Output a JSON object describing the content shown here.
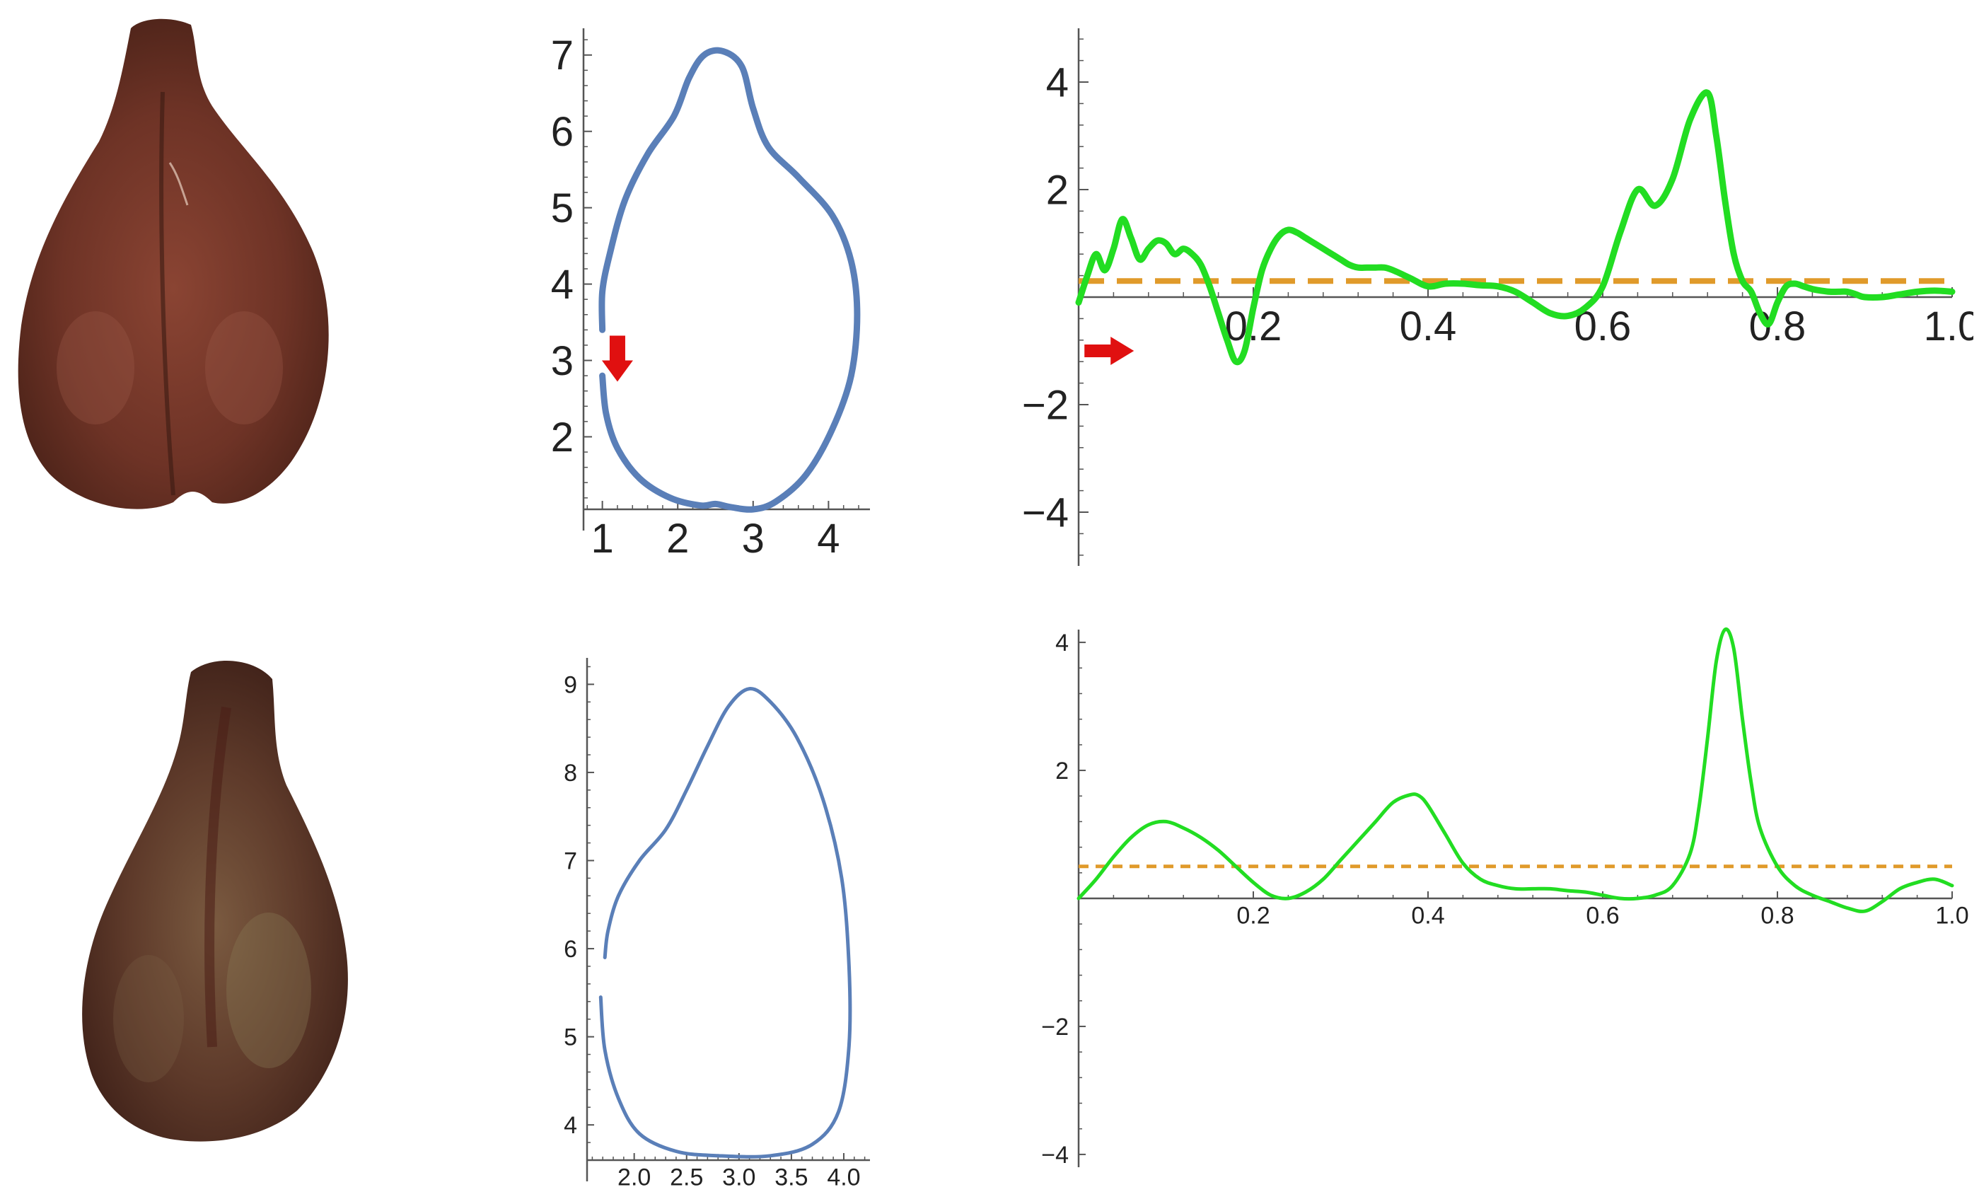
{
  "figure": {
    "colors": {
      "outline": "#5a7fb8",
      "curve": "#22dd22",
      "threshold": "#e09a2a",
      "marker": "#e01010",
      "axis": "#555555",
      "seed_dark": "#4e2419",
      "seed_mid": "#7a3a2a"
    },
    "seed_photos": [
      {
        "name": "seed-photo-top",
        "shape": "pear-shaped brown seed"
      },
      {
        "name": "seed-photo-bottom",
        "shape": "narrow pear-shaped brown seed"
      }
    ],
    "markers": [
      {
        "panel": "top-contour",
        "icon": "down-arrow-icon",
        "x": 1.2,
        "y": 3.0
      },
      {
        "panel": "top-curve",
        "icon": "right-arrow-icon",
        "x": 0.035,
        "y": -1.0
      }
    ]
  },
  "chart_data": [
    {
      "type": "line",
      "id": "top-contour",
      "xlim": [
        0.75,
        4.55
      ],
      "ylim": [
        1.05,
        7.35
      ],
      "xticks": [
        1,
        2,
        3,
        4
      ],
      "yticks": [
        2,
        3,
        4,
        5,
        6,
        7
      ],
      "series": [
        {
          "values": [
            [
              1.0,
              2.8
            ],
            [
              1.05,
              2.3
            ],
            [
              1.2,
              1.85
            ],
            [
              1.5,
              1.45
            ],
            [
              1.9,
              1.2
            ],
            [
              2.3,
              1.1
            ],
            [
              2.5,
              1.12
            ],
            [
              2.7,
              1.08
            ],
            [
              3.0,
              1.05
            ],
            [
              3.3,
              1.15
            ],
            [
              3.7,
              1.5
            ],
            [
              4.05,
              2.1
            ],
            [
              4.3,
              2.8
            ],
            [
              4.38,
              3.6
            ],
            [
              4.3,
              4.3
            ],
            [
              4.05,
              4.9
            ],
            [
              3.6,
              5.4
            ],
            [
              3.2,
              5.8
            ],
            [
              3.0,
              6.3
            ],
            [
              2.85,
              6.85
            ],
            [
              2.6,
              7.05
            ],
            [
              2.35,
              7.0
            ],
            [
              2.15,
              6.7
            ],
            [
              1.95,
              6.2
            ],
            [
              1.6,
              5.7
            ],
            [
              1.3,
              5.1
            ],
            [
              1.1,
              4.4
            ],
            [
              1.0,
              3.9
            ],
            [
              1.0,
              3.4
            ]
          ]
        }
      ]
    },
    {
      "type": "line",
      "id": "top-curve",
      "xlim": [
        0,
        1.0
      ],
      "ylim": [
        -5,
        5
      ],
      "xticks": [
        0.2,
        0.4,
        0.6,
        0.8,
        1.0
      ],
      "xtick_labels": [
        "0.2",
        "0.4",
        "0.6",
        "0.8",
        "1.0"
      ],
      "yticks": [
        -4,
        -2,
        2,
        4
      ],
      "ytick_labels": [
        "−4",
        "−2",
        "2",
        "4"
      ],
      "threshold": 0.3,
      "series": [
        {
          "x": [
            0,
            0.01,
            0.02,
            0.03,
            0.04,
            0.05,
            0.06,
            0.07,
            0.08,
            0.09,
            0.1,
            0.11,
            0.12,
            0.13,
            0.14,
            0.15,
            0.16,
            0.17,
            0.18,
            0.19,
            0.2,
            0.21,
            0.22,
            0.23,
            0.24,
            0.25,
            0.26,
            0.27,
            0.28,
            0.29,
            0.3,
            0.31,
            0.32,
            0.33,
            0.34,
            0.35,
            0.36,
            0.38,
            0.4,
            0.42,
            0.44,
            0.46,
            0.48,
            0.5,
            0.52,
            0.54,
            0.56,
            0.58,
            0.6,
            0.62,
            0.64,
            0.66,
            0.68,
            0.7,
            0.72,
            0.73,
            0.74,
            0.75,
            0.76,
            0.77,
            0.78,
            0.79,
            0.8,
            0.81,
            0.82,
            0.83,
            0.84,
            0.85,
            0.86,
            0.87,
            0.88,
            0.89,
            0.9,
            0.92,
            0.94,
            0.96,
            0.98,
            1.0
          ],
          "y": [
            -0.1,
            0.4,
            0.8,
            0.5,
            0.9,
            1.45,
            1.1,
            0.7,
            0.9,
            1.05,
            1.0,
            0.8,
            0.9,
            0.8,
            0.6,
            0.2,
            -0.3,
            -0.8,
            -1.2,
            -1.0,
            -0.2,
            0.5,
            0.9,
            1.15,
            1.25,
            1.2,
            1.1,
            1.0,
            0.9,
            0.8,
            0.7,
            0.6,
            0.55,
            0.55,
            0.55,
            0.55,
            0.5,
            0.35,
            0.2,
            0.25,
            0.25,
            0.22,
            0.2,
            0.1,
            -0.1,
            -0.3,
            -0.35,
            -0.2,
            0.2,
            1.2,
            2.0,
            1.7,
            2.2,
            3.3,
            3.8,
            3.0,
            1.8,
            0.8,
            0.3,
            0.1,
            -0.3,
            -0.5,
            -0.1,
            0.2,
            0.25,
            0.2,
            0.15,
            0.12,
            0.1,
            0.1,
            0.1,
            0.05,
            0.0,
            0.0,
            0.05,
            0.1,
            0.12,
            0.1
          ]
        }
      ]
    },
    {
      "type": "line",
      "id": "bottom-contour",
      "xlim": [
        1.55,
        4.25
      ],
      "ylim": [
        3.6,
        9.3
      ],
      "xticks": [
        2.0,
        2.5,
        3.0,
        3.5,
        4.0
      ],
      "xtick_labels": [
        "2.0",
        "2.5",
        "3.0",
        "3.5",
        "4.0"
      ],
      "yticks": [
        4,
        5,
        6,
        7,
        8,
        9
      ],
      "series": [
        {
          "values": [
            [
              1.72,
              5.9
            ],
            [
              1.75,
              6.2
            ],
            [
              1.85,
              6.6
            ],
            [
              2.05,
              7.0
            ],
            [
              2.3,
              7.35
            ],
            [
              2.5,
              7.8
            ],
            [
              2.7,
              8.3
            ],
            [
              2.9,
              8.75
            ],
            [
              3.1,
              8.95
            ],
            [
              3.3,
              8.8
            ],
            [
              3.55,
              8.4
            ],
            [
              3.8,
              7.7
            ],
            [
              3.98,
              6.8
            ],
            [
              4.05,
              5.8
            ],
            [
              4.05,
              4.9
            ],
            [
              3.95,
              4.15
            ],
            [
              3.7,
              3.78
            ],
            [
              3.3,
              3.65
            ],
            [
              2.8,
              3.65
            ],
            [
              2.4,
              3.7
            ],
            [
              2.05,
              3.9
            ],
            [
              1.85,
              4.3
            ],
            [
              1.72,
              4.85
            ],
            [
              1.68,
              5.45
            ]
          ]
        }
      ]
    },
    {
      "type": "line",
      "id": "bottom-curve",
      "xlim": [
        0,
        1.0
      ],
      "ylim": [
        -4.2,
        4.2
      ],
      "xticks": [
        0.2,
        0.4,
        0.6,
        0.8,
        1.0
      ],
      "xtick_labels": [
        "0.2",
        "0.4",
        "0.6",
        "0.8",
        "1.0"
      ],
      "yticks": [
        -4,
        -2,
        2,
        4
      ],
      "ytick_labels": [
        "−4",
        "−2",
        "2",
        "4"
      ],
      "threshold": 0.5,
      "series": [
        {
          "x": [
            0,
            0.02,
            0.04,
            0.06,
            0.08,
            0.1,
            0.12,
            0.14,
            0.16,
            0.18,
            0.2,
            0.22,
            0.24,
            0.26,
            0.28,
            0.3,
            0.32,
            0.34,
            0.36,
            0.38,
            0.39,
            0.4,
            0.42,
            0.44,
            0.46,
            0.48,
            0.5,
            0.52,
            0.54,
            0.56,
            0.58,
            0.6,
            0.62,
            0.64,
            0.66,
            0.68,
            0.7,
            0.71,
            0.72,
            0.73,
            0.74,
            0.75,
            0.76,
            0.77,
            0.78,
            0.8,
            0.82,
            0.84,
            0.86,
            0.88,
            0.9,
            0.92,
            0.94,
            0.96,
            0.98,
            1.0
          ],
          "y": [
            0.0,
            0.3,
            0.65,
            0.95,
            1.15,
            1.2,
            1.1,
            0.95,
            0.75,
            0.5,
            0.25,
            0.05,
            0.0,
            0.1,
            0.3,
            0.6,
            0.9,
            1.2,
            1.5,
            1.62,
            1.6,
            1.45,
            1.0,
            0.55,
            0.3,
            0.2,
            0.15,
            0.15,
            0.15,
            0.12,
            0.1,
            0.05,
            0.0,
            0.0,
            0.05,
            0.2,
            0.7,
            1.4,
            2.5,
            3.7,
            4.2,
            3.9,
            2.8,
            1.8,
            1.1,
            0.5,
            0.2,
            0.05,
            -0.05,
            -0.15,
            -0.2,
            -0.05,
            0.15,
            0.25,
            0.3,
            0.2
          ]
        }
      ]
    }
  ]
}
